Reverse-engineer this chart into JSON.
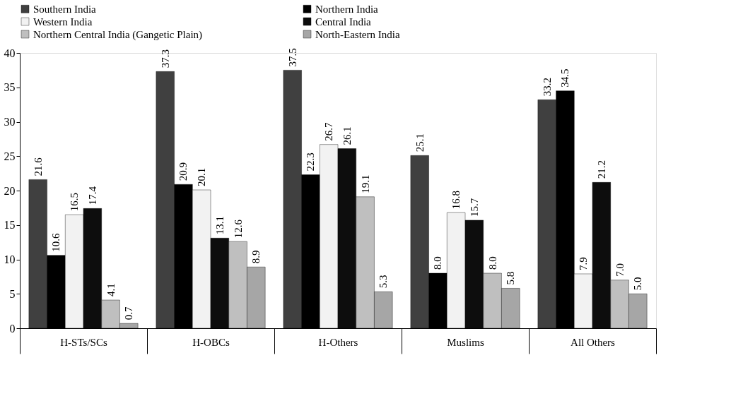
{
  "chart_data": {
    "type": "bar",
    "categories": [
      "H-STs/SCs",
      "H-OBCs",
      "H-Others",
      "Muslims",
      "All Others"
    ],
    "series": [
      {
        "name": "Southern India",
        "color": "#404040",
        "values": [
          21.6,
          37.3,
          37.5,
          25.1,
          33.2
        ],
        "value_labels": [
          "21.6",
          "37.3",
          "37.5",
          "25.1",
          "33.2"
        ]
      },
      {
        "name": "Northern India",
        "color": "#000000",
        "values": [
          10.6,
          20.9,
          22.3,
          8.0,
          34.5
        ],
        "value_labels": [
          "10.6",
          "20.9",
          "22.3",
          "8.0",
          "34.5"
        ]
      },
      {
        "name": "Western India",
        "color": "#f2f2f2",
        "values": [
          16.5,
          20.1,
          26.7,
          16.8,
          7.9
        ],
        "value_labels": [
          "16.5",
          "20.1",
          "26.7",
          "16.8",
          "7.9"
        ]
      },
      {
        "name": "Central India",
        "color": "#0d0d0d",
        "values": [
          17.4,
          13.1,
          26.1,
          15.7,
          21.2
        ],
        "value_labels": [
          "17.4",
          "13.1",
          "26.1",
          "15.7",
          "21.2"
        ]
      },
      {
        "name": "Northern Central India (Gangetic Plain)",
        "color": "#bfbfbf",
        "values": [
          4.1,
          12.6,
          19.1,
          8.0,
          7.0
        ],
        "value_labels": [
          "4.1",
          "12.6",
          "19.1",
          "8.0",
          "7.0"
        ]
      },
      {
        "name": "North-Eastern India",
        "color": "#a6a6a6",
        "values": [
          0.7,
          8.9,
          5.3,
          5.8,
          5.0
        ],
        "value_labels": [
          "0.7",
          "8.9",
          "5.3",
          "5.8",
          "5.0"
        ]
      }
    ],
    "ylim": [
      0,
      40
    ],
    "yticks": [
      0,
      5,
      10,
      15,
      20,
      25,
      30,
      35,
      40
    ],
    "grid": false,
    "legend": "top"
  }
}
